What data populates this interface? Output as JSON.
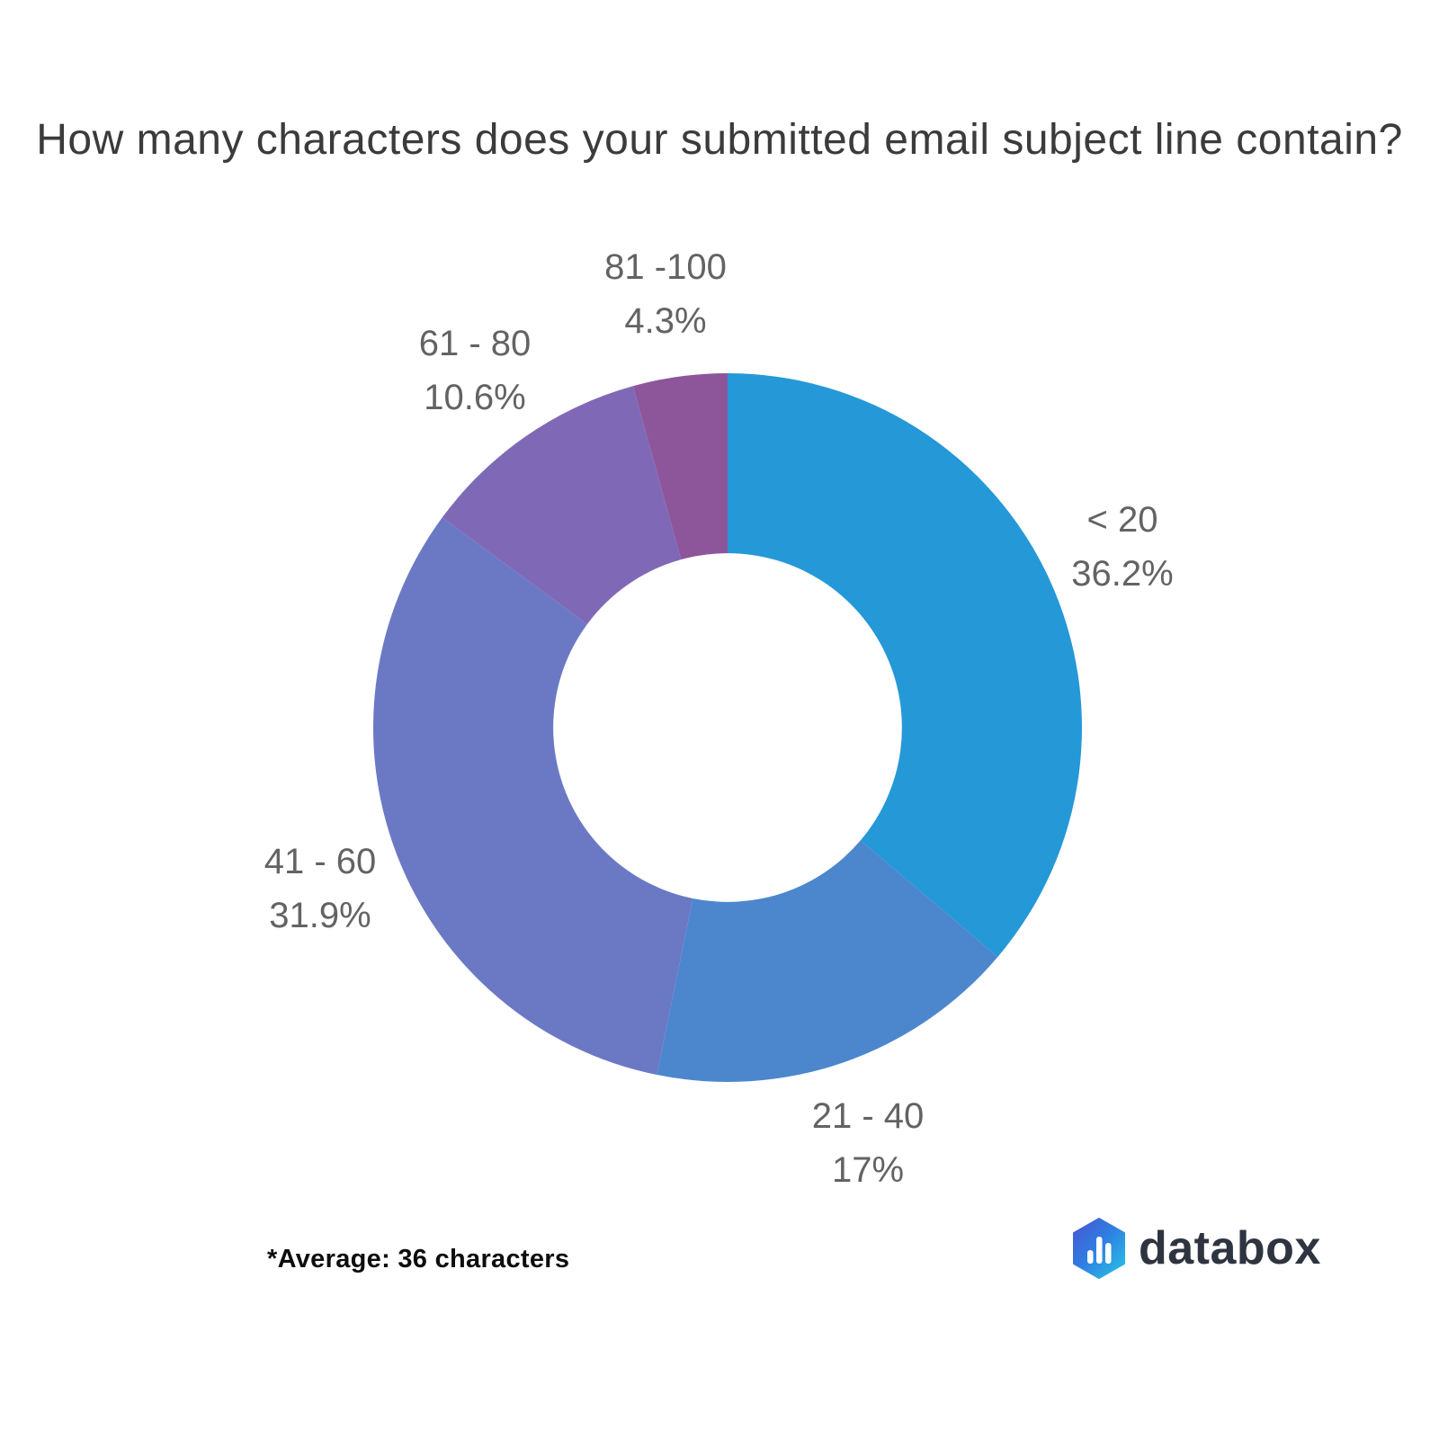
{
  "title": "How many characters does your submitted email subject line contain?",
  "footnote": "*Average: 36 characters",
  "logo": {
    "text": "databox",
    "icon": "databox-hexagon-bars",
    "icon_gradient": [
      "#4a55d2",
      "#2f7ce2",
      "#27c5e5"
    ],
    "wordmark_color": "#2f3540"
  },
  "chart_data": {
    "type": "pie",
    "subtype": "donut",
    "title": "How many characters does your submitted email subject line contain?",
    "categories": [
      "< 20",
      "21 - 40",
      "41 - 60",
      "61 - 80",
      "81 -100"
    ],
    "values": [
      36.2,
      17,
      31.9,
      10.6,
      4.3
    ],
    "unit": "%",
    "start_angle_deg": 0,
    "direction": "clockwise",
    "donut_hole_ratio": 0.492,
    "legend_position": "none",
    "labels_position": "outside",
    "label_color": "#636363",
    "slices": [
      {
        "label": "< 20",
        "value": 36.2,
        "value_label": "36.2%",
        "color": "#2598d8"
      },
      {
        "label": "21 - 40",
        "value": 17,
        "value_label": "17%",
        "color": "#4c87ce"
      },
      {
        "label": "41 - 60",
        "value": 31.9,
        "value_label": "31.9%",
        "color": "#6b79c5"
      },
      {
        "label": "61 - 80",
        "value": 10.6,
        "value_label": "10.6%",
        "color": "#7f69b7"
      },
      {
        "label": "81 -100",
        "value": 4.3,
        "value_label": "4.3%",
        "color": "#8d569b"
      }
    ]
  }
}
